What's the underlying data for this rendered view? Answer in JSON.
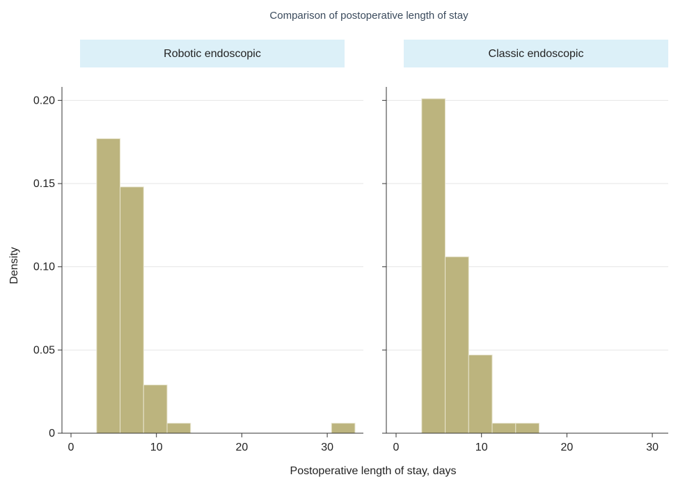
{
  "chart_data": {
    "type": "bar",
    "title": "Comparison of postoperative length of stay",
    "xlabel": "Postoperative length of stay, days",
    "ylabel": "Density",
    "xlim": [
      -1,
      33
    ],
    "ylim": [
      0,
      0.206
    ],
    "x_ticks": [
      0,
      10,
      20,
      30
    ],
    "y_ticks": [
      0,
      0.05,
      0.1,
      0.15,
      0.2
    ],
    "y_tick_labels": [
      "0",
      "0.05",
      "0.10",
      "0.15",
      "0.20"
    ],
    "x_tick_labels": [
      "0",
      "10",
      "20",
      "30"
    ],
    "grid": true,
    "colors": {
      "bar_fill": "#bcb47e",
      "bar_edge": "#e8e5cf",
      "panel_header": "#dcf0f8",
      "grid": "#e6e6e6",
      "axis": "#333333",
      "title": "#3a4a5c"
    },
    "bin_width": 2.75,
    "series": [
      {
        "name": "Robotic endoscopic",
        "bins": [
          {
            "start": 3.0,
            "end": 5.75,
            "density": 0.177
          },
          {
            "start": 5.75,
            "end": 8.5,
            "density": 0.148
          },
          {
            "start": 8.5,
            "end": 11.25,
            "density": 0.029
          },
          {
            "start": 11.25,
            "end": 14.0,
            "density": 0.006
          },
          {
            "start": 30.5,
            "end": 33.25,
            "density": 0.006
          }
        ]
      },
      {
        "name": "Classic endoscopic",
        "bins": [
          {
            "start": 3.0,
            "end": 5.75,
            "density": 0.201
          },
          {
            "start": 5.75,
            "end": 8.5,
            "density": 0.106
          },
          {
            "start": 8.5,
            "end": 11.25,
            "density": 0.047
          },
          {
            "start": 11.25,
            "end": 14.0,
            "density": 0.006
          },
          {
            "start": 14.0,
            "end": 16.75,
            "density": 0.006
          }
        ]
      }
    ]
  }
}
